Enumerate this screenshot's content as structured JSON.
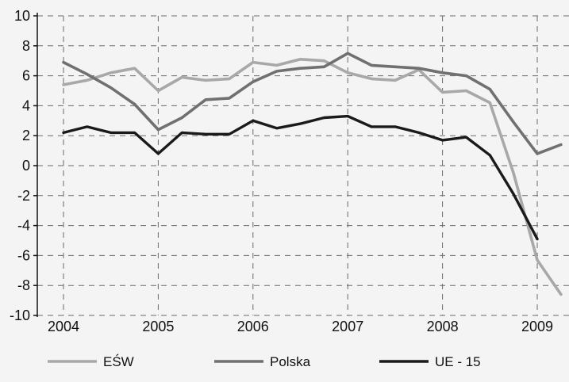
{
  "chart_data": {
    "type": "line",
    "title": "",
    "xlabel": "",
    "ylabel": "",
    "ylim": [
      -10,
      10
    ],
    "y_ticks": [
      10,
      8,
      6,
      4,
      2,
      0,
      -2,
      -4,
      -6,
      -8,
      -10
    ],
    "x_ticks": [
      "2004",
      "2005",
      "2006",
      "2007",
      "2008",
      "2009"
    ],
    "grid": true,
    "legend_position": "bottom",
    "series": [
      {
        "name": "EŚW",
        "color": "#a8a8a8",
        "x": [
          2004.0,
          2004.25,
          2004.5,
          2004.75,
          2005.0,
          2005.25,
          2005.5,
          2005.75,
          2006.0,
          2006.25,
          2006.5,
          2006.75,
          2007.0,
          2007.25,
          2007.5,
          2007.75,
          2008.0,
          2008.25,
          2008.5,
          2008.75,
          2009.0,
          2009.25
        ],
        "values": [
          5.4,
          5.7,
          6.2,
          6.5,
          5.0,
          5.9,
          5.7,
          5.8,
          6.9,
          6.7,
          7.1,
          7.0,
          6.2,
          5.8,
          5.7,
          6.4,
          4.9,
          5.0,
          4.2,
          -0.5,
          -6.3,
          -8.6
        ]
      },
      {
        "name": "Polska",
        "color": "#707070",
        "x": [
          2004.0,
          2004.25,
          2004.5,
          2004.75,
          2005.0,
          2005.25,
          2005.5,
          2005.75,
          2006.0,
          2006.25,
          2006.5,
          2006.75,
          2007.0,
          2007.25,
          2007.5,
          2007.75,
          2008.0,
          2008.25,
          2008.5,
          2008.75,
          2009.0,
          2009.25
        ],
        "values": [
          6.9,
          6.1,
          5.2,
          4.1,
          2.4,
          3.2,
          4.4,
          4.5,
          5.6,
          6.3,
          6.5,
          6.6,
          7.5,
          6.7,
          6.6,
          6.5,
          6.2,
          6.0,
          5.1,
          2.9,
          0.8,
          1.4
        ]
      },
      {
        "name": "UE - 15",
        "color": "#1a1a1a",
        "x": [
          2004.0,
          2004.25,
          2004.5,
          2004.75,
          2005.0,
          2005.25,
          2005.5,
          2005.75,
          2006.0,
          2006.25,
          2006.5,
          2006.75,
          2007.0,
          2007.25,
          2007.5,
          2007.75,
          2008.0,
          2008.25,
          2008.5,
          2008.75,
          2009.0
        ],
        "values": [
          2.2,
          2.6,
          2.2,
          2.2,
          0.8,
          2.2,
          2.1,
          2.1,
          3.0,
          2.5,
          2.8,
          3.2,
          3.3,
          2.6,
          2.6,
          2.2,
          1.7,
          1.9,
          0.7,
          -1.9,
          -4.9
        ]
      }
    ]
  }
}
